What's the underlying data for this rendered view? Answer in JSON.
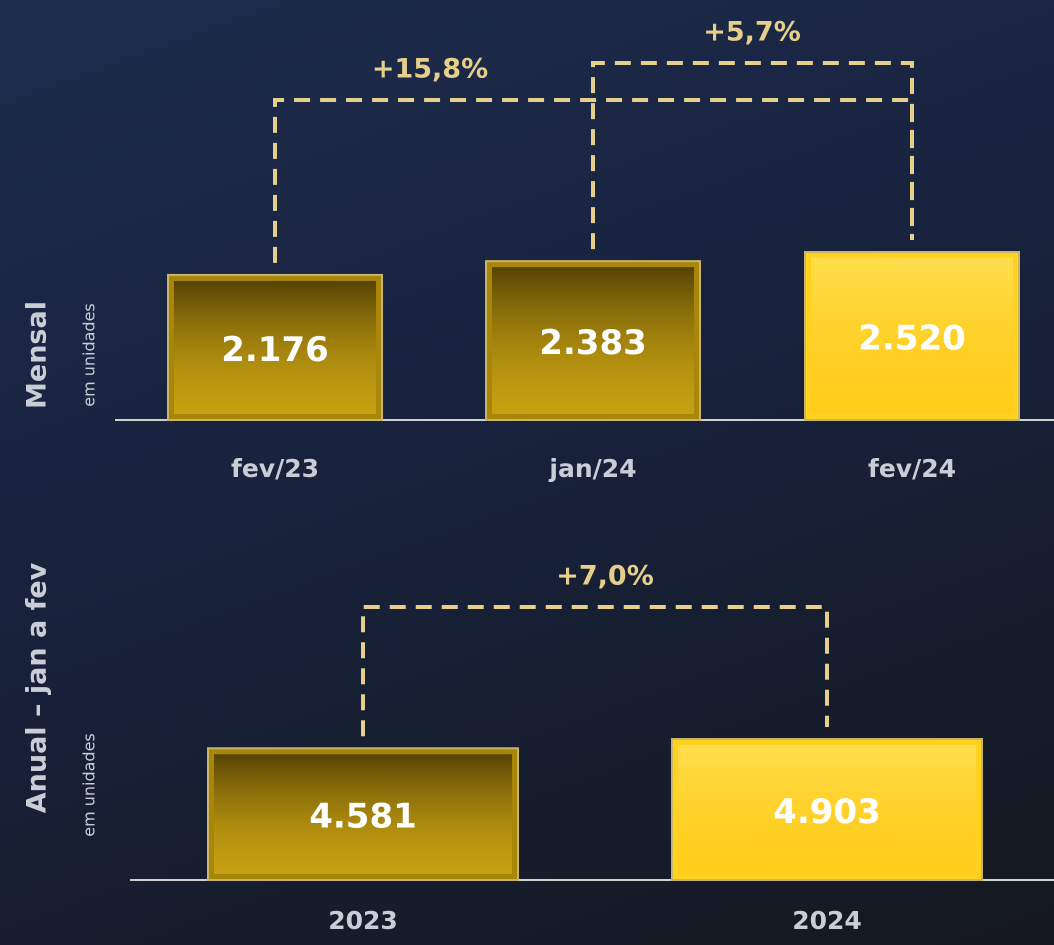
{
  "chart_data": [
    {
      "type": "bar",
      "title": "Mensal",
      "subtitle": "em unidades",
      "categories": [
        "fev/23",
        "jan/24",
        "fev/24"
      ],
      "values": [
        2176,
        2383,
        2520
      ],
      "value_labels": [
        "2.176",
        "2.383",
        "2.520"
      ],
      "colors": [
        "#a8860a",
        "#a8860a",
        "#ffd21f"
      ],
      "comparisons": [
        {
          "label": "+15,8%",
          "from": 0,
          "to": 2
        },
        {
          "label": "+5,7%",
          "from": 1,
          "to": 2
        }
      ]
    },
    {
      "type": "bar",
      "title": "Anual – jan a fev",
      "subtitle": "em unidades",
      "categories": [
        "2023",
        "2024"
      ],
      "values": [
        4581,
        4903
      ],
      "value_labels": [
        "4.581",
        "4.903"
      ],
      "colors": [
        "#a8860a",
        "#ffd21f"
      ],
      "comparisons": [
        {
          "label": "+7,0%",
          "from": 0,
          "to": 1
        }
      ]
    }
  ]
}
